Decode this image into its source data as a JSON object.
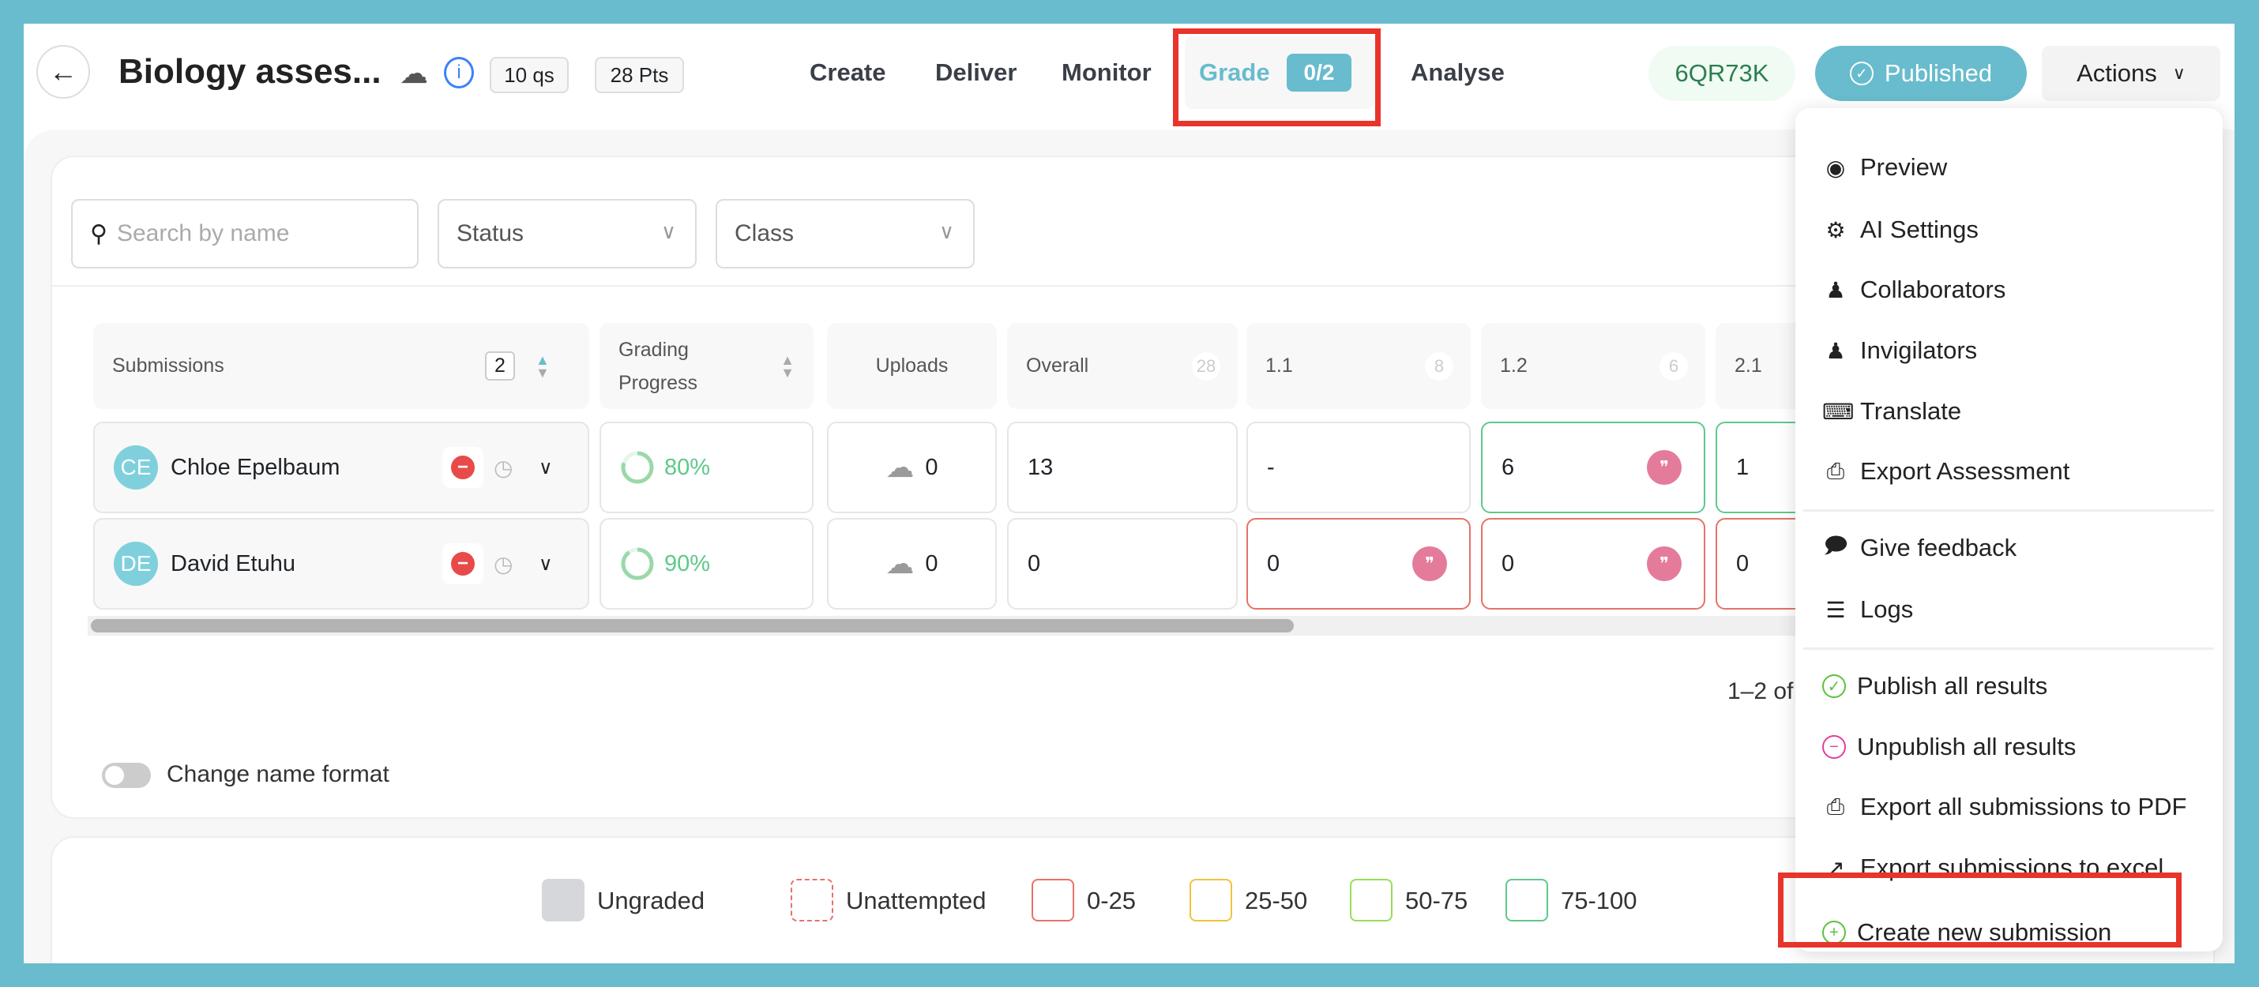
{
  "header": {
    "title": "Biology asses...",
    "questions": "10 qs",
    "points": "28 Pts",
    "code": "6QR73K",
    "status": "Published",
    "actions": "Actions"
  },
  "nav": {
    "create": "Create",
    "deliver": "Deliver",
    "monitor": "Monitor",
    "grade": "Grade",
    "grade_count": "0/2",
    "analyse": "Analyse"
  },
  "filters": {
    "search_placeholder": "Search by name",
    "status": "Status",
    "class": "Class"
  },
  "table": {
    "headers": {
      "submissions": "Submissions",
      "submissions_count": "2",
      "grading_progress": "Grading Progress",
      "uploads": "Uploads",
      "overall": "Overall",
      "overall_max": "28",
      "q11": "1.1",
      "q11_max": "8",
      "q12": "1.2",
      "q12_max": "6",
      "q21": "2.1"
    },
    "rows": [
      {
        "initials": "CE",
        "name": "Chloe Epelbaum",
        "progress": "80%",
        "progress_value": 80,
        "uploads": "0",
        "overall": "13",
        "q11": "-",
        "q12": "6",
        "q21": "1"
      },
      {
        "initials": "DE",
        "name": "David Etuhu",
        "progress": "90%",
        "progress_value": 90,
        "uploads": "0",
        "overall": "0",
        "q11": "0",
        "q12": "0",
        "q21": "0"
      }
    ]
  },
  "pagination": "1–2 of",
  "toggle": {
    "label": "Change name format",
    "on": false
  },
  "legend": [
    {
      "label": "Ungraded",
      "color": "#d6d7db"
    },
    {
      "label": "Unattempted",
      "color": "#e57368"
    },
    {
      "label": "0-25",
      "color": "#e57368"
    },
    {
      "label": "25-50",
      "color": "#f0c23e"
    },
    {
      "label": "50-75",
      "color": "#97dd5a"
    },
    {
      "label": "75-100",
      "color": "#5ec98a"
    }
  ],
  "menu": {
    "items": [
      "Preview",
      "AI Settings",
      "Collaborators",
      "Invigilators",
      "Translate",
      "Export Assessment",
      "Give feedback",
      "Logs",
      "Publish all results",
      "Unpublish all results",
      "Export all submissions to PDF",
      "Export submissions to excel",
      "Create new submission"
    ]
  },
  "colors": {
    "accent": "#68bccd",
    "highlight": "#e8342a",
    "green": "#5ec98a",
    "red": "#e57368"
  }
}
